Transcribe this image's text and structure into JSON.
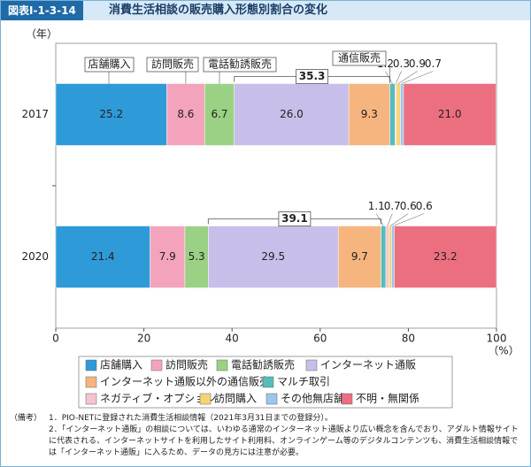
{
  "header": {
    "figure_no": "図表Ⅰ-1-3-14",
    "title": "消費生活相談の販売購入形態別割合の変化"
  },
  "chart_data": {
    "type": "stacked-barh",
    "y_axis_label": "（年）",
    "x_axis_label": "（%）",
    "categories": [
      "2017",
      "2020"
    ],
    "xlim": [
      0,
      100
    ],
    "xticks": [
      0,
      20,
      40,
      60,
      80,
      100
    ],
    "series": [
      {
        "name": "店舗購入",
        "color": "#2f9ad8",
        "values": [
          25.2,
          21.4
        ],
        "value_labels": [
          "25.2",
          "21.4"
        ]
      },
      {
        "name": "訪問販売",
        "color": "#f4a3bd",
        "values": [
          8.6,
          7.9
        ],
        "value_labels": [
          "8.6",
          "7.9"
        ]
      },
      {
        "name": "電話勧誘販売",
        "color": "#9bd184",
        "values": [
          6.7,
          5.3
        ],
        "value_labels": [
          "6.7",
          "5.3"
        ]
      },
      {
        "name": "インターネット通販",
        "color": "#c7bfe9",
        "values": [
          26.0,
          29.5
        ],
        "value_labels": [
          "26.0",
          "29.5"
        ]
      },
      {
        "name": "インターネット通販以外の通信販売",
        "color": "#f6b47f",
        "values": [
          9.3,
          9.7
        ],
        "value_labels": [
          "9.3",
          "9.7"
        ]
      },
      {
        "name": "マルチ取引",
        "color": "#55bdb9",
        "values": [
          1.2,
          1.1
        ],
        "value_labels": [
          "1.2",
          "1.1"
        ]
      },
      {
        "name": "ネガティブ・オプション",
        "color": "#f6c3d3",
        "values": [
          0.3,
          0.7
        ],
        "value_labels": [
          "0.3",
          "0.7"
        ]
      },
      {
        "name": "訪問購入",
        "color": "#f5d474",
        "values": [
          0.9,
          0.6
        ],
        "value_labels": [
          "0.9",
          "0.6"
        ]
      },
      {
        "name": "その他無店舗",
        "color": "#9cc6ea",
        "values": [
          0.7,
          0.6
        ],
        "value_labels": [
          "0.7",
          "0.6"
        ]
      },
      {
        "name": "不明・無関係",
        "color": "#ec6f80",
        "values": [
          21.0,
          23.2
        ],
        "value_labels": [
          "21.0",
          "23.2"
        ]
      }
    ],
    "annotations": [
      "35.3",
      "39.1"
    ],
    "callouts": [
      "店舗購入",
      "訪問販売",
      "電話勧誘販売",
      "通信販売"
    ],
    "legend": "bottom"
  },
  "notes": {
    "label": "（備考）",
    "items": [
      "1．PIO-NETに登録された消費生活相談情報（2021年3月31日までの登録分）。",
      "2．「インターネット通販」の相談については、いわゆる通常のインターネット通販より広い概念を含んでおり、アダルト情報サイトに代表される、インターネットサイトを利用したサイト利用料、オンラインゲーム等のデジタルコンテンツも、消費生活相談情報では「インターネット通販」に入るため、データの見方には注意が必要。"
    ]
  }
}
